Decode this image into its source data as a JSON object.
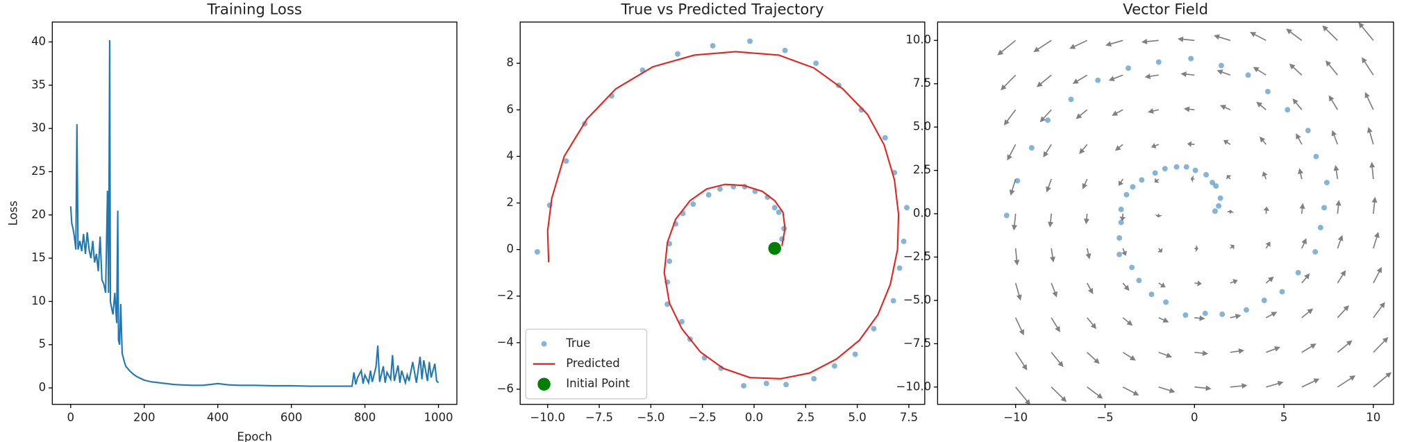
{
  "chart_data": [
    {
      "type": "line",
      "title": "Training Loss",
      "x_label": "Epoch",
      "y_label": "Loss",
      "color": "#1f77b4",
      "x": [
        0,
        3,
        6,
        10,
        14,
        17,
        20,
        25,
        30,
        35,
        40,
        45,
        50,
        55,
        60,
        65,
        70,
        75,
        80,
        85,
        90,
        95,
        100,
        103,
        106,
        108,
        110,
        115,
        120,
        125,
        128,
        130,
        133,
        136,
        140,
        143,
        146,
        150,
        160,
        170,
        180,
        190,
        200,
        220,
        240,
        260,
        280,
        300,
        330,
        360,
        400,
        430,
        460,
        500,
        550,
        600,
        650,
        700,
        750,
        765,
        770,
        775,
        780,
        790,
        795,
        800,
        810,
        815,
        820,
        830,
        835,
        840,
        850,
        855,
        860,
        870,
        875,
        880,
        890,
        895,
        900,
        910,
        915,
        920,
        930,
        940,
        950,
        955,
        960,
        970,
        975,
        980,
        990,
        995,
        1000
      ],
      "values": [
        21,
        19,
        18.5,
        17.5,
        16,
        30.5,
        16,
        17,
        15.8,
        17.8,
        15.5,
        18,
        16,
        15,
        17,
        14.5,
        15.5,
        13.5,
        17.5,
        12.5,
        12,
        11,
        22.8,
        11,
        40.2,
        10,
        9.5,
        8.5,
        11,
        7.5,
        20.5,
        5.5,
        5,
        9.7,
        4,
        3.5,
        3,
        2.5,
        2,
        1.6,
        1.3,
        1.1,
        0.9,
        0.7,
        0.6,
        0.5,
        0.4,
        0.35,
        0.3,
        0.3,
        0.5,
        0.35,
        0.3,
        0.3,
        0.25,
        0.25,
        0.2,
        0.2,
        0.2,
        0.2,
        1.8,
        0.4,
        1.2,
        2,
        0.5,
        1.5,
        0.6,
        2,
        0.7,
        2.4,
        4.9,
        0.7,
        2.5,
        0.6,
        1.8,
        1,
        3.8,
        0.8,
        2.6,
        0.6,
        2,
        0.6,
        1.5,
        0.8,
        3,
        0.6,
        3.6,
        1,
        3.2,
        0.8,
        3,
        1.2,
        2.8,
        0.8,
        0.6
      ],
      "xlim": [
        -50,
        1050
      ],
      "ylim": [
        -1.9,
        42.3
      ],
      "xticks": [
        0,
        200,
        400,
        600,
        800,
        1000
      ],
      "yticks": [
        0,
        5,
        10,
        15,
        20,
        25,
        30,
        35,
        40
      ]
    },
    {
      "type": "scatter",
      "title": "True vs Predicted Trajectory",
      "legend": "lower left",
      "series": [
        {
          "name": "True",
          "kind": "scatter",
          "color": "#1f77b4",
          "x": [
            -10.5,
            -9.9,
            -9.1,
            -8.2,
            -6.9,
            -5.4,
            -3.7,
            -2.0,
            -0.2,
            1.5,
            3.0,
            4.1,
            5.2,
            6.35,
            6.8,
            7.4,
            7.25,
            7.05,
            6.75,
            5.8,
            4.9,
            3.9,
            2.9,
            1.55,
            0.6,
            -0.5,
            -1.6,
            -2.4,
            -3.1,
            -3.5,
            -4.2,
            -4.2,
            -4.1,
            -4.1,
            -3.8,
            -3.45,
            -2.95,
            -2.2,
            -1.65,
            -1.0,
            -0.45,
            0.05,
            0.65,
            1.0,
            1.2,
            1.45,
            1.35,
            1.15
          ],
          "values": [
            -0.1,
            1.9,
            3.8,
            5.4,
            6.6,
            7.7,
            8.4,
            8.75,
            8.95,
            8.55,
            8.0,
            7.05,
            6.0,
            4.8,
            3.3,
            1.8,
            0.35,
            -0.8,
            -2.2,
            -3.4,
            -4.5,
            -5.0,
            -5.55,
            -5.8,
            -5.75,
            -5.85,
            -5.1,
            -4.65,
            -3.85,
            -3.1,
            -2.35,
            -1.4,
            -0.5,
            0.25,
            1.1,
            1.55,
            1.95,
            2.35,
            2.6,
            2.7,
            2.7,
            2.5,
            2.25,
            1.8,
            1.6,
            0.9,
            0.45,
            0.15
          ]
        },
        {
          "name": "Predicted",
          "kind": "line",
          "color": "#e8211c",
          "x": [
            1.35,
            1.5,
            1.4,
            1.0,
            0.4,
            -0.5,
            -1.4,
            -2.3,
            -3.1,
            -3.8,
            -4.2,
            -4.35,
            -4.1,
            -3.5,
            -2.6,
            -1.5,
            -0.2,
            1.3,
            2.7,
            4.0,
            5.1,
            6.0,
            6.6,
            6.95,
            7.0,
            6.8,
            6.3,
            5.5,
            4.3,
            2.9,
            1.2,
            -0.9,
            -2.9,
            -4.9,
            -6.7,
            -8.1,
            -9.2,
            -9.8,
            -10.0,
            -9.95
          ],
          "values": [
            0.15,
            0.9,
            1.6,
            2.1,
            2.5,
            2.75,
            2.8,
            2.6,
            2.1,
            1.3,
            0.3,
            -1.0,
            -2.3,
            -3.4,
            -4.4,
            -5.1,
            -5.5,
            -5.55,
            -5.3,
            -4.7,
            -3.9,
            -2.8,
            -1.5,
            0.0,
            1.5,
            3.0,
            4.5,
            5.8,
            6.9,
            7.8,
            8.35,
            8.5,
            8.35,
            7.85,
            6.9,
            5.6,
            4.0,
            2.2,
            0.8,
            -0.55
          ]
        },
        {
          "name": "Initial Point",
          "kind": "marker",
          "color": "#008000",
          "x": [
            1.0
          ],
          "values": [
            0.05
          ]
        }
      ],
      "xlim": [
        -11.33,
        8.27
      ],
      "ylim": [
        -6.65,
        9.77
      ],
      "xticks": [
        {
          "value": -10,
          "label": "−10.0"
        },
        {
          "value": -7.5,
          "label": "−7.5"
        },
        {
          "value": -5,
          "label": "−5.0"
        },
        {
          "value": -2.5,
          "label": "−2.5"
        },
        {
          "value": 0,
          "label": "0.0"
        },
        {
          "value": 2.5,
          "label": "2.5"
        },
        {
          "value": 5,
          "label": "5.0"
        },
        {
          "value": 7.5,
          "label": "7.5"
        }
      ],
      "yticks": [
        {
          "value": -6,
          "label": "−6"
        },
        {
          "value": -4,
          "label": "−4"
        },
        {
          "value": -2,
          "label": "−2"
        },
        0,
        2,
        4,
        6,
        8
      ]
    },
    {
      "type": "quiver",
      "title": "Vector Field",
      "quiver_color": "#808080",
      "grid_x": [
        -10,
        -8,
        -6,
        -4,
        -2,
        0,
        2,
        4,
        6,
        8,
        10
      ],
      "grid_y": [
        -10,
        -8,
        -6,
        -4,
        -2,
        0,
        2,
        4,
        6,
        8,
        10
      ],
      "u": [
        [
          9,
          9.2,
          9.4,
          9.6,
          9.8,
          10,
          10.2,
          10.4,
          10.6,
          10.8,
          11
        ],
        [
          7,
          7.2,
          7.4,
          7.6,
          7.8,
          8,
          8.2,
          8.4,
          8.6,
          8.8,
          9
        ],
        [
          5,
          5.2,
          5.4,
          5.6,
          5.8,
          6,
          6.2,
          6.4,
          6.6,
          6.8,
          7
        ],
        [
          3,
          3.2,
          3.4,
          3.6,
          3.8,
          4,
          4.2,
          4.4,
          4.6,
          4.8,
          5
        ],
        [
          1,
          1.2,
          1.4,
          1.6,
          1.8,
          2,
          2.2,
          2.4,
          2.6,
          2.8,
          3
        ],
        [
          -1,
          -0.8,
          -0.6,
          -0.4,
          -0.2,
          0,
          0.2,
          0.4,
          0.6,
          0.8,
          1
        ],
        [
          -3,
          -2.8,
          -2.6,
          -2.4,
          -2.2,
          -2,
          -1.8,
          -1.6,
          -1.4,
          -1.2,
          -1
        ],
        [
          -5,
          -4.8,
          -4.6,
          -4.4,
          -4.2,
          -4,
          -3.8,
          -3.6,
          -3.4,
          -3.2,
          -3
        ],
        [
          -7,
          -6.8,
          -6.6,
          -6.4,
          -6.2,
          -6,
          -5.8,
          -5.6,
          -5.4,
          -5.2,
          -5
        ],
        [
          -9,
          -8.8,
          -8.6,
          -8.4,
          -8.2,
          -8,
          -7.8,
          -7.6,
          -7.4,
          -7.2,
          -7
        ],
        [
          -11,
          -10.8,
          -10.6,
          -10.4,
          -10.2,
          -10,
          -9.8,
          -9.6,
          -9.4,
          -9.2,
          -9
        ]
      ],
      "v": [
        [
          -11,
          -9,
          -7,
          -5,
          -3,
          -1,
          1,
          3,
          5,
          7,
          9
        ],
        [
          -10.8,
          -8.8,
          -6.8,
          -4.8,
          -2.8,
          -0.8,
          1.2,
          3.2,
          5.2,
          7.2,
          9.2
        ],
        [
          -10.6,
          -8.6,
          -6.6,
          -4.6,
          -2.6,
          -0.6,
          1.4,
          3.4,
          5.4,
          7.4,
          9.4
        ],
        [
          -10.4,
          -8.4,
          -6.4,
          -4.4,
          -2.4,
          -0.4,
          1.6,
          3.6,
          5.6,
          7.6,
          9.6
        ],
        [
          -10.2,
          -8.2,
          -6.2,
          -4.2,
          -2.2,
          -0.2,
          1.8,
          3.8,
          5.8,
          7.8,
          9.8
        ],
        [
          -10,
          -8,
          -6,
          -4,
          -2,
          0,
          2,
          4,
          6,
          8,
          10
        ],
        [
          -9.8,
          -7.8,
          -5.8,
          -3.8,
          -1.8,
          0.2,
          2.2,
          4.2,
          6.2,
          8.2,
          10.2
        ],
        [
          -9.6,
          -7.6,
          -5.6,
          -3.6,
          -1.6,
          0.4,
          2.4,
          4.4,
          6.4,
          8.4,
          10.4
        ],
        [
          -9.4,
          -7.4,
          -5.4,
          -3.4,
          -1.4,
          0.6,
          2.6,
          4.6,
          6.6,
          8.6,
          10.6
        ],
        [
          -9.2,
          -7.2,
          -5.2,
          -3.2,
          -1.2,
          0.8,
          2.8,
          4.8,
          6.8,
          8.8,
          10.8
        ],
        [
          -9,
          -7,
          -5,
          -3,
          -1,
          1,
          3,
          5,
          7,
          9,
          11
        ]
      ],
      "series": [
        {
          "kind": "scatter",
          "color": "#1f77b4",
          "x": [
            -10.5,
            -9.9,
            -9.1,
            -8.2,
            -6.9,
            -5.4,
            -3.7,
            -2.0,
            -0.2,
            1.5,
            3.0,
            4.1,
            5.2,
            6.35,
            6.8,
            7.4,
            7.25,
            7.05,
            6.75,
            5.8,
            4.9,
            3.9,
            2.9,
            1.55,
            0.6,
            -0.5,
            -1.6,
            -2.4,
            -3.1,
            -3.5,
            -4.2,
            -4.2,
            -4.1,
            -4.1,
            -3.8,
            -3.45,
            -2.95,
            -2.2,
            -1.65,
            -1.0,
            -0.45,
            0.05,
            0.65,
            1.0,
            1.2,
            1.45,
            1.35,
            1.15
          ],
          "values": [
            -0.1,
            1.9,
            3.8,
            5.4,
            6.6,
            7.7,
            8.4,
            8.75,
            8.95,
            8.55,
            8.0,
            7.05,
            6.0,
            4.8,
            3.3,
            1.8,
            0.35,
            -0.8,
            -2.2,
            -3.4,
            -4.5,
            -5.0,
            -5.55,
            -5.8,
            -5.75,
            -5.85,
            -5.1,
            -4.65,
            -3.85,
            -3.1,
            -2.35,
            -1.4,
            -0.5,
            0.25,
            1.1,
            1.55,
            1.95,
            2.35,
            2.6,
            2.7,
            2.7,
            2.5,
            2.25,
            1.8,
            1.6,
            0.9,
            0.45,
            0.15
          ]
        }
      ],
      "xlim": [
        -14.36,
        11.13
      ],
      "ylim": [
        -11.0,
        11.06
      ],
      "xticks": [
        {
          "value": -10,
          "label": "−10"
        },
        {
          "value": -5,
          "label": "−5"
        },
        0,
        5,
        10
      ],
      "yticks": [
        {
          "value": -10,
          "label": "−10.0"
        },
        {
          "value": -7.5,
          "label": "−7.5"
        },
        {
          "value": -5,
          "label": "−5.0"
        },
        {
          "value": -2.5,
          "label": "−2.5"
        },
        {
          "value": 0,
          "label": "0.0"
        },
        {
          "value": 2.5,
          "label": "2.5"
        },
        {
          "value": 5,
          "label": "5.0"
        },
        {
          "value": 7.5,
          "label": "7.5"
        },
        {
          "value": 10,
          "label": "10.0"
        }
      ]
    }
  ]
}
